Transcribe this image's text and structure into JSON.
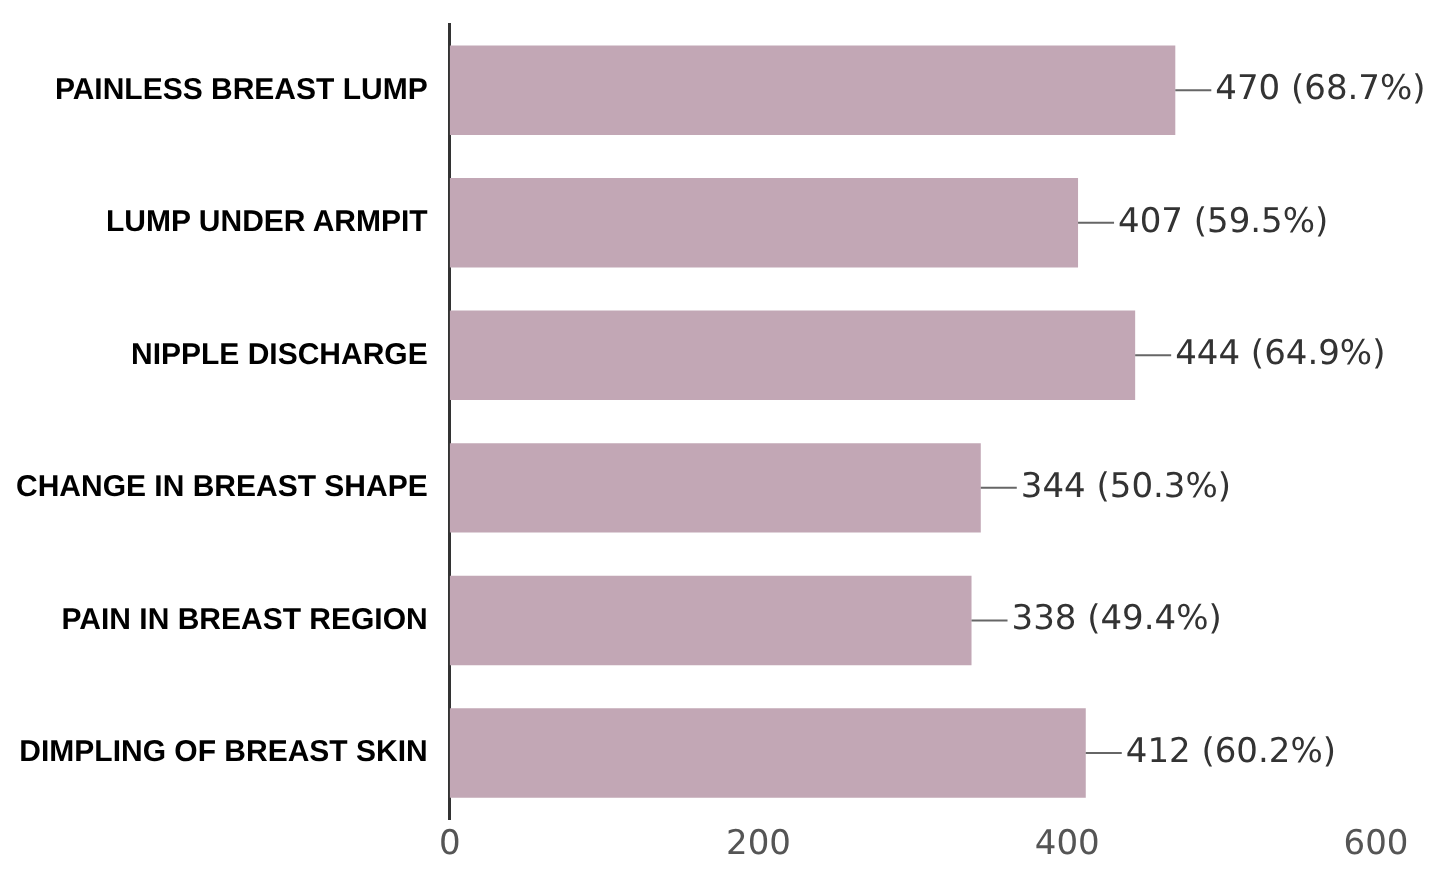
{
  "chart_data": {
    "type": "bar",
    "orientation": "horizontal",
    "categories": [
      "PAINLESS BREAST LUMP",
      "LUMP UNDER ARMPIT",
      "NIPPLE DISCHARGE",
      "CHANGE IN BREAST SHAPE",
      "PAIN IN BREAST REGION",
      "DIMPLING OF BREAST SKIN"
    ],
    "values": [
      470,
      407,
      444,
      344,
      338,
      412
    ],
    "value_labels": [
      "470 (68.7%)",
      "407 (59.5%)",
      "444 (64.9%)",
      "344 (50.3%)",
      "338 (49.4%)",
      "412 (60.2%)"
    ],
    "color": "#c2a7b5",
    "xlim": [
      0,
      600
    ],
    "xticks": [
      0,
      200,
      400,
      600
    ],
    "grid": false,
    "legend": false
  }
}
